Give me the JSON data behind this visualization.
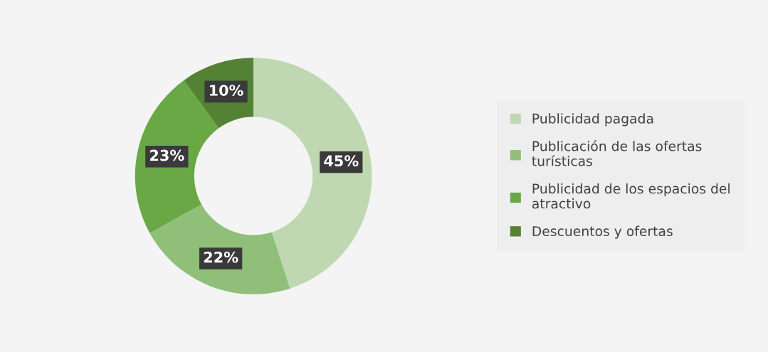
{
  "chart_data": {
    "type": "donut",
    "categories": [
      "Publicidad pagada",
      "Publicación de las ofertas turísticas",
      "Publicidad de los espacios del atractivo",
      "Descuentos y ofertas"
    ],
    "values": [
      45,
      22,
      23,
      10
    ],
    "colors": [
      "#bfd8b2",
      "#90bf7a",
      "#6aa845",
      "#548235"
    ],
    "value_labels": [
      "45%",
      "22%",
      "23%",
      "10%"
    ],
    "legend": "right"
  }
}
